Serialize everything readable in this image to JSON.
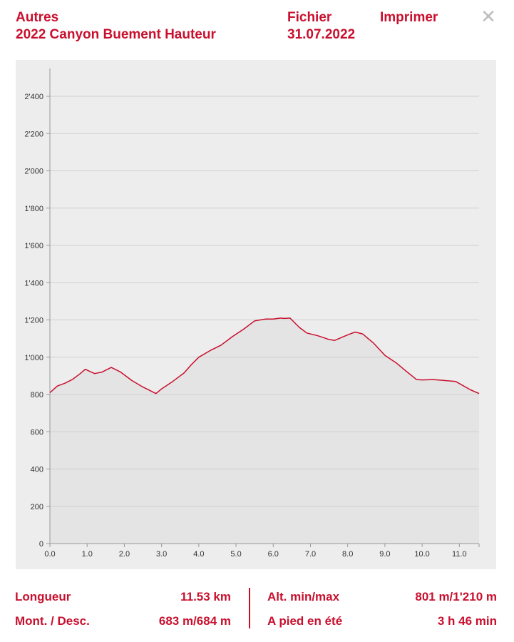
{
  "header": {
    "category": "Autres",
    "title": "2022 Canyon Buement Hauteur",
    "file_label": "Fichier",
    "date": "31.07.2022",
    "print_label": "Imprimer",
    "close_symbol": "✕"
  },
  "chart_data": {
    "type": "area",
    "x_unit": "km",
    "y_unit": "m",
    "xlim": [
      0,
      11.53
    ],
    "ylim": [
      0,
      2500
    ],
    "x_ticks": [
      0,
      1,
      2,
      3,
      4,
      5,
      6,
      7,
      8,
      9,
      10,
      11
    ],
    "x_tick_labels": [
      "0.0",
      "1.0",
      "2.0",
      "3.0",
      "4.0",
      "5.0",
      "6.0",
      "7.0",
      "8.0",
      "9.0",
      "10.0",
      "11.0"
    ],
    "y_ticks": [
      0,
      200,
      400,
      600,
      800,
      1000,
      1200,
      1400,
      1600,
      1800,
      2000,
      2200,
      2400
    ],
    "y_tick_labels": [
      "0",
      "200",
      "400",
      "600",
      "800",
      "1'000",
      "1'200",
      "1'400",
      "1'600",
      "1'800",
      "2'000",
      "2'200",
      "2'400"
    ],
    "grid": true,
    "colors": {
      "line": "#c8102e",
      "fill": "#e4e4e4",
      "background": "#ededed",
      "grid": "#cfcfcf"
    },
    "x": [
      0,
      0.2,
      0.4,
      0.6,
      0.8,
      0.95,
      1.2,
      1.4,
      1.65,
      1.9,
      2.2,
      2.5,
      2.85,
      3.0,
      3.3,
      3.6,
      3.8,
      4.0,
      4.3,
      4.6,
      4.9,
      5.2,
      5.5,
      5.8,
      6.0,
      6.2,
      6.3,
      6.45,
      6.7,
      6.9,
      7.2,
      7.5,
      7.65,
      8.0,
      8.2,
      8.4,
      8.7,
      9.0,
      9.3,
      9.6,
      9.85,
      10.0,
      10.3,
      10.6,
      10.9,
      11.3,
      11.53
    ],
    "y": [
      810,
      845,
      860,
      880,
      910,
      935,
      912,
      920,
      945,
      920,
      875,
      840,
      805,
      830,
      870,
      915,
      960,
      1000,
      1035,
      1065,
      1110,
      1150,
      1195,
      1205,
      1205,
      1210,
      1208,
      1210,
      1160,
      1130,
      1115,
      1095,
      1090,
      1120,
      1135,
      1125,
      1075,
      1010,
      970,
      920,
      880,
      878,
      880,
      875,
      870,
      825,
      805
    ]
  },
  "stats": {
    "length_label": "Longueur",
    "length_value": "11.53 km",
    "ascent_label": "Mont. / Desc.",
    "ascent_value": "683 m/684 m",
    "altitude_label": "Alt. min/max",
    "altitude_value": "801 m/1'210 m",
    "walk_label": "A pied en été",
    "walk_value": "3 h 46 min"
  }
}
